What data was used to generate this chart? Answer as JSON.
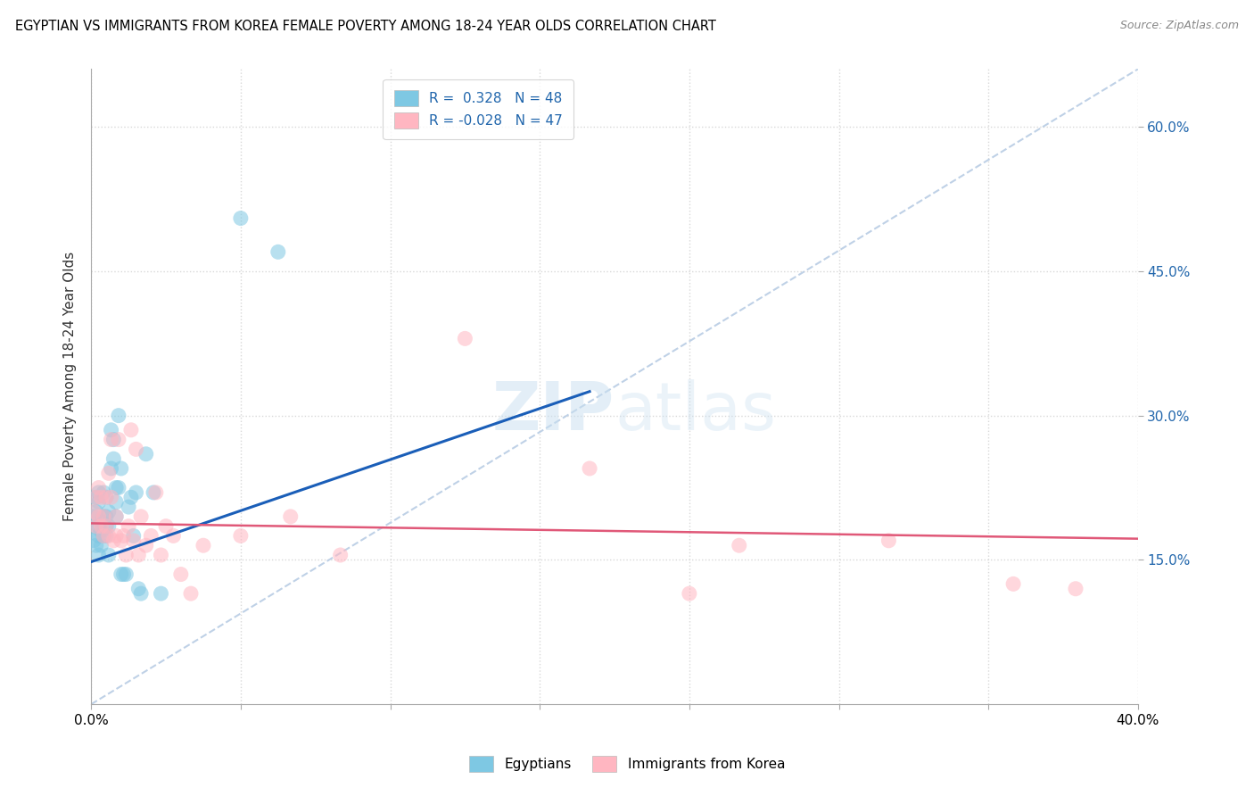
{
  "title": "EGYPTIAN VS IMMIGRANTS FROM KOREA FEMALE POVERTY AMONG 18-24 YEAR OLDS CORRELATION CHART",
  "source": "Source: ZipAtlas.com",
  "ylabel": "Female Poverty Among 18-24 Year Olds",
  "xlim": [
    0.0,
    0.42
  ],
  "ylim": [
    0.0,
    0.66
  ],
  "yticks": [
    0.15,
    0.3,
    0.45,
    0.6
  ],
  "ytick_labels": [
    "15.0%",
    "30.0%",
    "45.0%",
    "60.0%"
  ],
  "xticks": [
    0.0,
    0.06,
    0.12,
    0.18,
    0.24,
    0.3,
    0.36,
    0.42
  ],
  "xtick_labels": [
    "0.0%",
    "",
    "",
    "",
    "",
    "",
    "",
    "40.0%"
  ],
  "color_blue": "#7ec8e3",
  "color_pink": "#ffb6c1",
  "line_blue": "#1a5eb8",
  "line_pink": "#e05878",
  "line_diag_color": "#b8cce4",
  "background": "#ffffff",
  "grid_color": "#d8d8d8",
  "blue_line_x0": 0.0,
  "blue_line_y0": 0.148,
  "blue_line_x1": 0.2,
  "blue_line_y1": 0.325,
  "pink_line_x0": 0.0,
  "pink_line_y0": 0.188,
  "pink_line_x1": 0.42,
  "pink_line_y1": 0.172,
  "egyptians_x": [
    0.001,
    0.001,
    0.001,
    0.002,
    0.002,
    0.002,
    0.003,
    0.003,
    0.003,
    0.003,
    0.003,
    0.004,
    0.004,
    0.004,
    0.005,
    0.005,
    0.005,
    0.006,
    0.006,
    0.006,
    0.006,
    0.007,
    0.007,
    0.007,
    0.008,
    0.008,
    0.009,
    0.009,
    0.01,
    0.01,
    0.01,
    0.011,
    0.011,
    0.012,
    0.012,
    0.013,
    0.014,
    0.015,
    0.016,
    0.017,
    0.018,
    0.019,
    0.02,
    0.022,
    0.025,
    0.028,
    0.06,
    0.075
  ],
  "egyptians_y": [
    0.185,
    0.195,
    0.17,
    0.2,
    0.215,
    0.165,
    0.22,
    0.185,
    0.175,
    0.21,
    0.155,
    0.18,
    0.19,
    0.165,
    0.195,
    0.175,
    0.22,
    0.185,
    0.175,
    0.195,
    0.215,
    0.155,
    0.2,
    0.185,
    0.285,
    0.245,
    0.255,
    0.275,
    0.195,
    0.225,
    0.21,
    0.3,
    0.225,
    0.245,
    0.135,
    0.135,
    0.135,
    0.205,
    0.215,
    0.175,
    0.22,
    0.12,
    0.115,
    0.26,
    0.22,
    0.115,
    0.505,
    0.47
  ],
  "korea_x": [
    0.001,
    0.002,
    0.002,
    0.003,
    0.003,
    0.004,
    0.004,
    0.005,
    0.005,
    0.006,
    0.006,
    0.007,
    0.007,
    0.008,
    0.008,
    0.009,
    0.01,
    0.01,
    0.011,
    0.012,
    0.013,
    0.014,
    0.015,
    0.016,
    0.017,
    0.018,
    0.019,
    0.02,
    0.022,
    0.024,
    0.026,
    0.028,
    0.03,
    0.033,
    0.036,
    0.04,
    0.045,
    0.06,
    0.08,
    0.1,
    0.15,
    0.2,
    0.24,
    0.26,
    0.32,
    0.37,
    0.395
  ],
  "korea_y": [
    0.2,
    0.215,
    0.185,
    0.225,
    0.195,
    0.215,
    0.185,
    0.195,
    0.175,
    0.215,
    0.185,
    0.24,
    0.175,
    0.215,
    0.275,
    0.17,
    0.175,
    0.195,
    0.275,
    0.17,
    0.175,
    0.155,
    0.185,
    0.285,
    0.17,
    0.265,
    0.155,
    0.195,
    0.165,
    0.175,
    0.22,
    0.155,
    0.185,
    0.175,
    0.135,
    0.115,
    0.165,
    0.175,
    0.195,
    0.155,
    0.38,
    0.245,
    0.115,
    0.165,
    0.17,
    0.125,
    0.12
  ]
}
